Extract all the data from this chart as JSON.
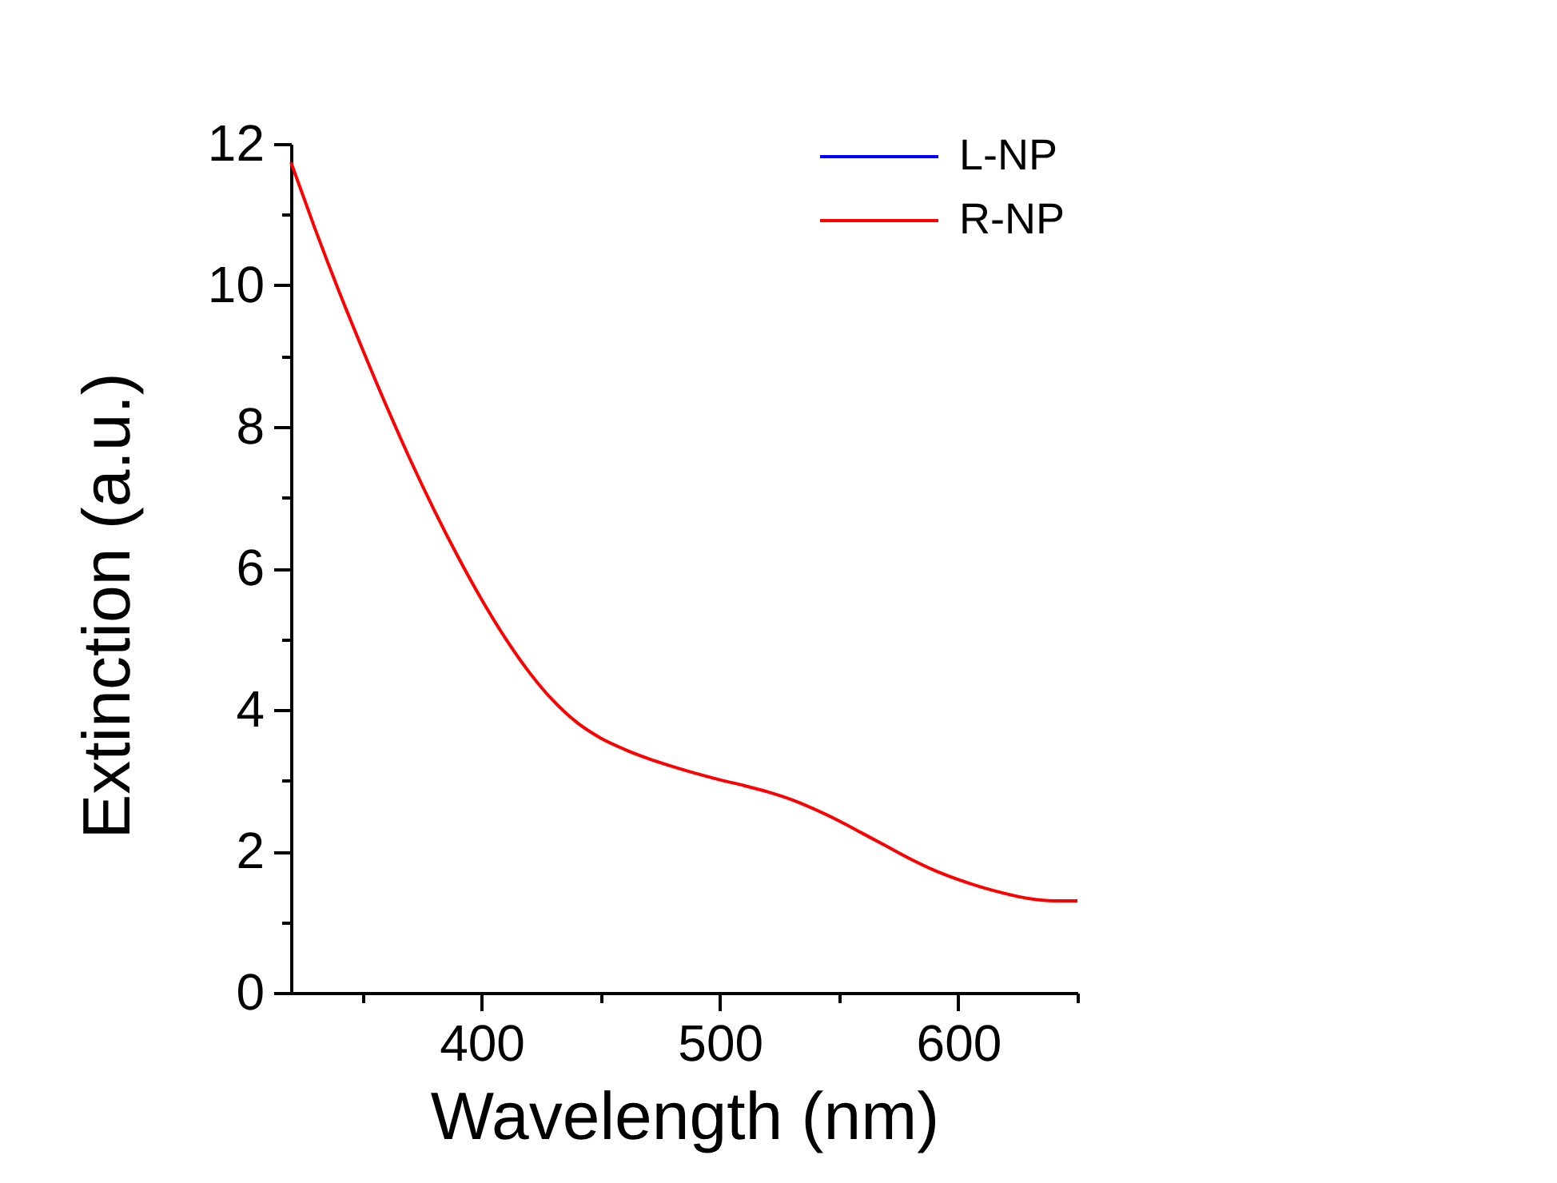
{
  "chart_data": {
    "type": "line",
    "xlabel": "Wavelength (nm)",
    "ylabel": "Extinction (a.u.)",
    "x": [
      320,
      330,
      340,
      350,
      360,
      370,
      380,
      390,
      400,
      410,
      420,
      430,
      440,
      450,
      460,
      470,
      480,
      490,
      500,
      510,
      520,
      530,
      540,
      550,
      560,
      570,
      580,
      590,
      600,
      610,
      620,
      630,
      640,
      650
    ],
    "series": [
      {
        "name": "L-NP",
        "color": "#0000ff",
        "values": [
          null,
          null,
          null,
          null,
          null,
          null,
          null,
          null,
          null,
          null,
          null,
          null,
          null,
          null,
          null,
          null,
          null,
          null,
          null,
          null,
          null,
          null,
          null,
          null,
          null,
          null,
          null,
          null,
          null,
          null,
          null,
          null,
          null,
          null
        ]
      },
      {
        "name": "R-NP",
        "color": "#ff0000",
        "values": [
          11.74,
          10.81,
          9.93,
          9.1,
          8.3,
          7.54,
          6.83,
          6.17,
          5.56,
          5.01,
          4.53,
          4.13,
          3.82,
          3.6,
          3.44,
          3.31,
          3.2,
          3.1,
          3.01,
          2.93,
          2.84,
          2.73,
          2.59,
          2.43,
          2.25,
          2.07,
          1.89,
          1.73,
          1.6,
          1.49,
          1.4,
          1.33,
          1.3,
          1.3
        ]
      }
    ],
    "xlim": [
      320,
      650
    ],
    "ylim": [
      0,
      12
    ],
    "xticks": [
      {
        "value": 350,
        "label": null
      },
      400,
      {
        "value": 450,
        "label": null
      },
      500,
      {
        "value": 550,
        "label": null
      },
      600,
      {
        "value": 650,
        "label": null
      }
    ],
    "yticks": [
      0,
      {
        "value": 1,
        "label": null
      },
      2,
      {
        "value": 3,
        "label": null
      },
      4,
      {
        "value": 5,
        "label": null
      },
      6,
      {
        "value": 7,
        "label": null
      },
      8,
      {
        "value": 9,
        "label": null
      },
      10,
      {
        "value": 11,
        "label": null
      },
      12
    ],
    "legend": "top right"
  }
}
